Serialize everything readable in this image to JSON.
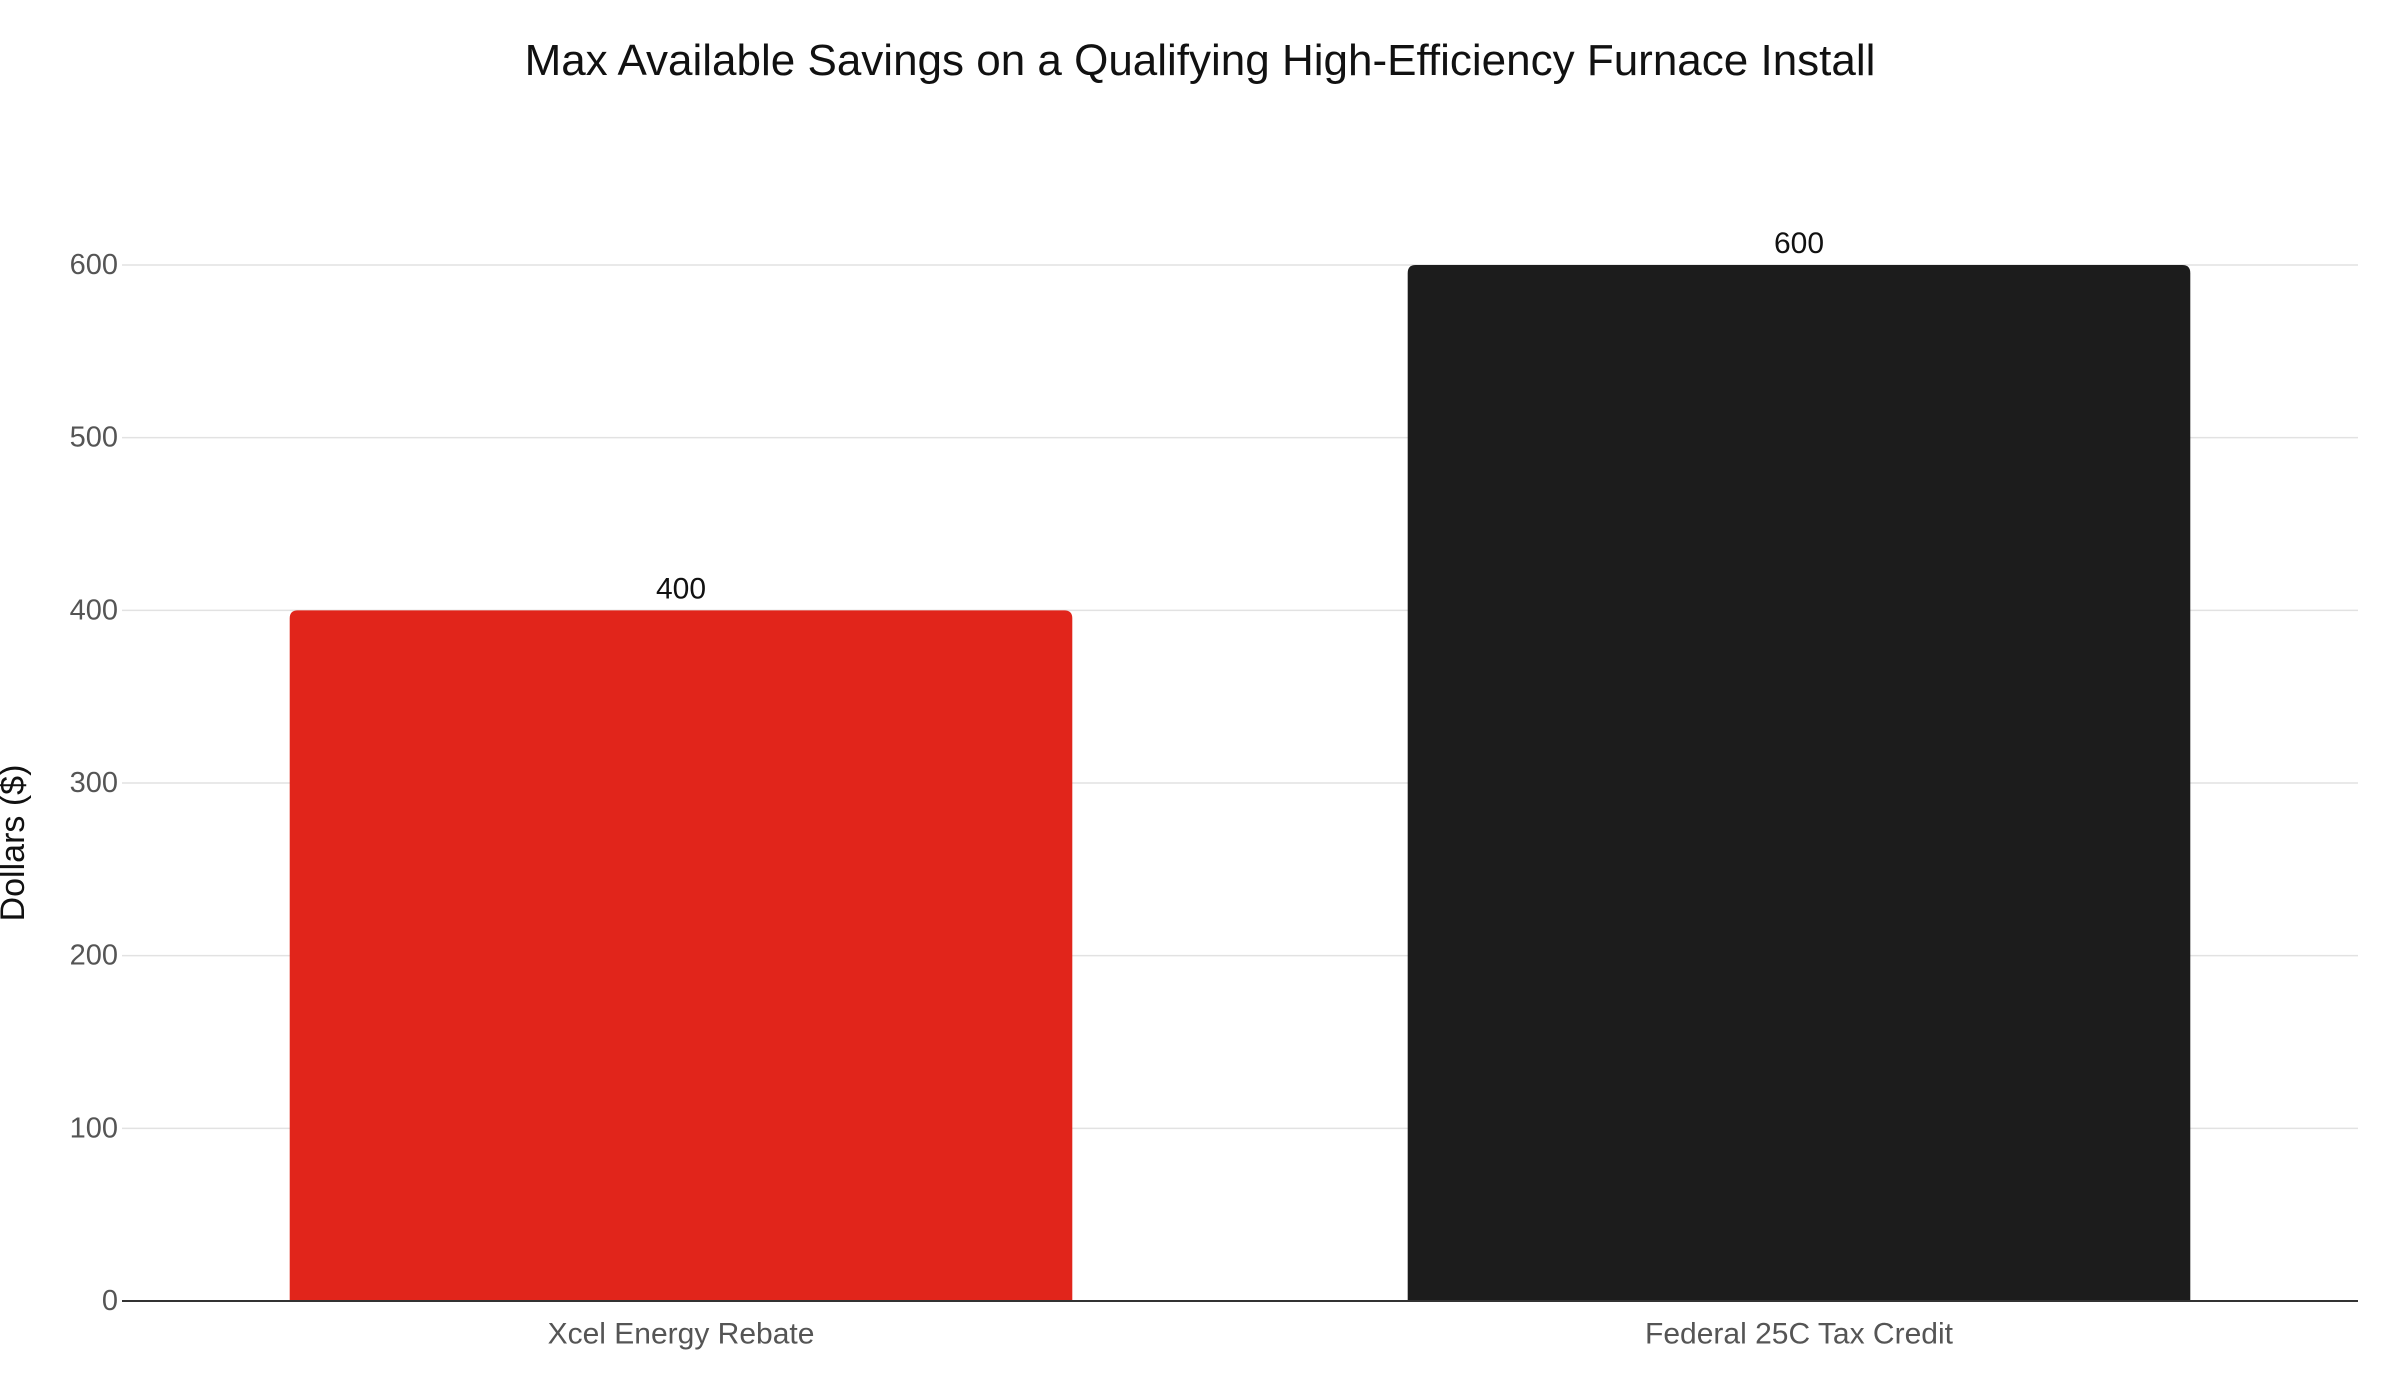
{
  "chart_data": {
    "type": "bar",
    "title": "Max Available Savings on a Qualifying High-Efficiency Furnace Install",
    "xlabel": "",
    "ylabel": "Dollars ($)",
    "categories": [
      "Xcel Energy Rebate",
      "Federal 25C Tax Credit"
    ],
    "values": [
      400,
      600
    ],
    "data_labels": [
      "400",
      "600"
    ],
    "bar_colors": [
      "#e1251b",
      "#1c1c1c"
    ],
    "ylim": [
      0,
      600
    ],
    "yticks": [
      0,
      100,
      200,
      300,
      400,
      500,
      600
    ],
    "grid": true,
    "legend": "none"
  }
}
